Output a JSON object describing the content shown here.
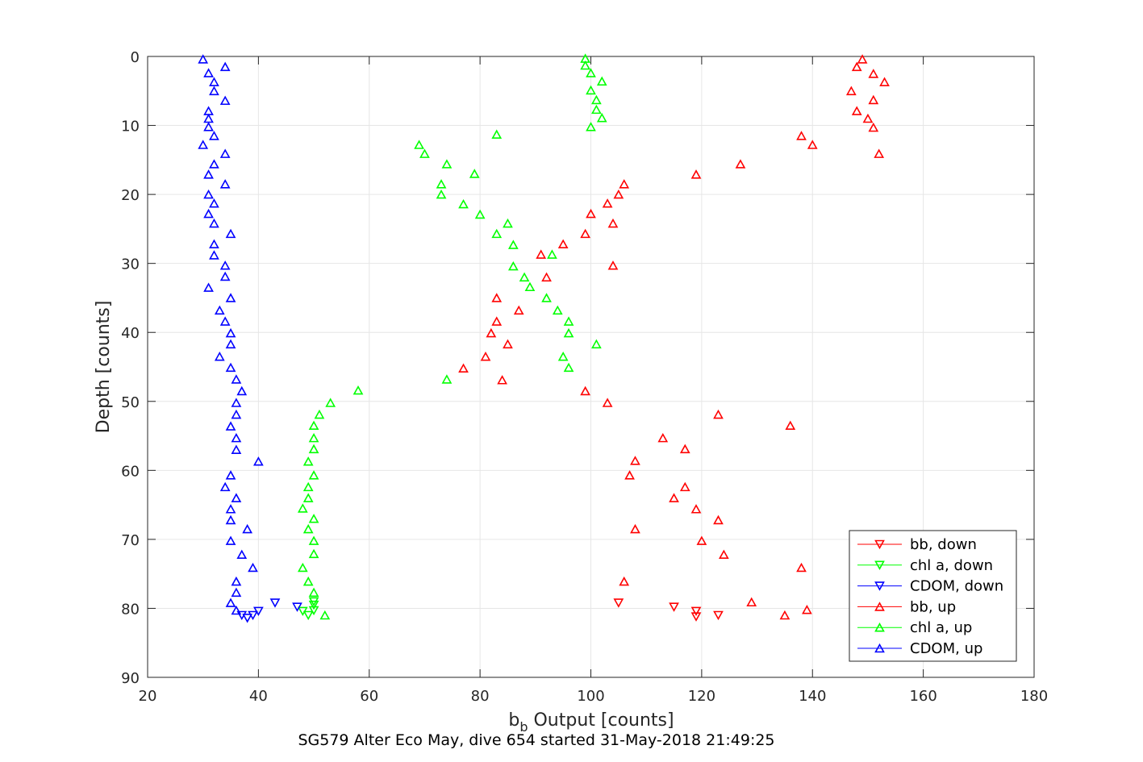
{
  "chart_data": {
    "type": "scatter",
    "title": "",
    "footer": "SG579 Alter Eco May, dive 654 started 31-May-2018 21:49:25",
    "xlabel_main": "b",
    "xlabel_sub": "b",
    "xlabel_rest": " Output [counts]",
    "ylabel": "Depth [counts]",
    "xlim": [
      20,
      180
    ],
    "ylim": [
      0,
      90
    ],
    "y_reversed": true,
    "grid": true,
    "legend_position": "bottom-right",
    "x_ticks": [
      20,
      40,
      60,
      80,
      100,
      120,
      140,
      160,
      180
    ],
    "y_ticks": [
      0,
      10,
      20,
      30,
      40,
      50,
      60,
      70,
      80,
      90
    ],
    "series": [
      {
        "name": "bb, down",
        "color": "#ff0000",
        "marker": "triangle-down",
        "points": [
          [
            105,
            79.2
          ],
          [
            115,
            79.8
          ],
          [
            119,
            80.4
          ],
          [
            119,
            81.2
          ],
          [
            123,
            81.0
          ]
        ]
      },
      {
        "name": "chl a, down",
        "color": "#00ff00",
        "marker": "triangle-down",
        "points": [
          [
            50,
            79.0
          ],
          [
            50,
            79.5
          ],
          [
            50,
            80.3
          ],
          [
            48,
            80.4
          ],
          [
            49,
            81.0
          ]
        ]
      },
      {
        "name": "CDOM, down",
        "color": "#0000ff",
        "marker": "triangle-down",
        "points": [
          [
            43,
            79.2
          ],
          [
            47,
            79.8
          ],
          [
            40,
            80.4
          ],
          [
            39,
            81.0
          ],
          [
            38,
            81.4
          ],
          [
            37,
            81.0
          ]
        ]
      },
      {
        "name": "bb, up",
        "color": "#ff0000",
        "marker": "triangle-up",
        "points": [
          [
            149,
            0.4
          ],
          [
            148,
            1.5
          ],
          [
            151,
            2.5
          ],
          [
            153,
            3.7
          ],
          [
            147,
            5.0
          ],
          [
            151,
            6.3
          ],
          [
            148,
            7.9
          ],
          [
            150,
            9.0
          ],
          [
            151,
            10.3
          ],
          [
            138,
            11.5
          ],
          [
            140,
            12.8
          ],
          [
            152,
            14.1
          ],
          [
            127,
            15.6
          ],
          [
            119,
            17.1
          ],
          [
            106,
            18.5
          ],
          [
            105,
            20.0
          ],
          [
            103,
            21.3
          ],
          [
            100,
            22.8
          ],
          [
            104,
            24.2
          ],
          [
            99,
            25.7
          ],
          [
            95,
            27.2
          ],
          [
            91,
            28.7
          ],
          [
            104,
            30.3
          ],
          [
            92,
            32.0
          ],
          [
            83,
            35.0
          ],
          [
            87,
            36.8
          ],
          [
            83,
            38.4
          ],
          [
            82,
            40.1
          ],
          [
            85,
            41.7
          ],
          [
            81,
            43.5
          ],
          [
            77,
            45.2
          ],
          [
            84,
            46.9
          ],
          [
            99,
            48.5
          ],
          [
            103,
            50.2
          ],
          [
            123,
            51.9
          ],
          [
            136,
            53.5
          ],
          [
            113,
            55.3
          ],
          [
            117,
            56.9
          ],
          [
            108,
            58.6
          ],
          [
            107,
            60.7
          ],
          [
            117,
            62.4
          ],
          [
            115,
            64.0
          ],
          [
            119,
            65.6
          ],
          [
            123,
            67.2
          ],
          [
            108,
            68.5
          ],
          [
            120,
            70.2
          ],
          [
            124,
            72.2
          ],
          [
            138,
            74.1
          ],
          [
            106,
            76.1
          ],
          [
            129,
            79.1
          ],
          [
            139,
            80.2
          ],
          [
            135,
            81.0
          ]
        ]
      },
      {
        "name": "chl a, up",
        "color": "#00ff00",
        "marker": "triangle-up",
        "points": [
          [
            99,
            0.3
          ],
          [
            99,
            1.3
          ],
          [
            100,
            2.4
          ],
          [
            102,
            3.6
          ],
          [
            100,
            4.9
          ],
          [
            101,
            6.3
          ],
          [
            101,
            7.7
          ],
          [
            102,
            8.9
          ],
          [
            100,
            10.2
          ],
          [
            83,
            11.3
          ],
          [
            69,
            12.8
          ],
          [
            70,
            14.1
          ],
          [
            74,
            15.6
          ],
          [
            79,
            17.0
          ],
          [
            73,
            18.5
          ],
          [
            73,
            20.0
          ],
          [
            77,
            21.4
          ],
          [
            80,
            22.9
          ],
          [
            85,
            24.2
          ],
          [
            83,
            25.7
          ],
          [
            86,
            27.3
          ],
          [
            93,
            28.7
          ],
          [
            86,
            30.4
          ],
          [
            88,
            32.0
          ],
          [
            89,
            33.4
          ],
          [
            92,
            35.0
          ],
          [
            94,
            36.8
          ],
          [
            96,
            38.4
          ],
          [
            96,
            40.1
          ],
          [
            101,
            41.7
          ],
          [
            95,
            43.5
          ],
          [
            96,
            45.1
          ],
          [
            74,
            46.8
          ],
          [
            58,
            48.4
          ],
          [
            53,
            50.2
          ],
          [
            51,
            51.9
          ],
          [
            50,
            53.5
          ],
          [
            50,
            55.3
          ],
          [
            50,
            56.9
          ],
          [
            49,
            58.7
          ],
          [
            50,
            60.7
          ],
          [
            49,
            62.4
          ],
          [
            49,
            64.0
          ],
          [
            48,
            65.5
          ],
          [
            50,
            67.0
          ],
          [
            49,
            68.5
          ],
          [
            50,
            70.2
          ],
          [
            50,
            72.1
          ],
          [
            48,
            74.1
          ],
          [
            49,
            76.1
          ],
          [
            50,
            77.7
          ],
          [
            52,
            81.0
          ]
        ]
      },
      {
        "name": "CDOM, up",
        "color": "#0000ff",
        "marker": "triangle-up",
        "points": [
          [
            30,
            0.4
          ],
          [
            34,
            1.5
          ],
          [
            31,
            2.4
          ],
          [
            32,
            3.7
          ],
          [
            32,
            5.0
          ],
          [
            34,
            6.4
          ],
          [
            31,
            7.9
          ],
          [
            31,
            9.0
          ],
          [
            31,
            10.2
          ],
          [
            32,
            11.5
          ],
          [
            30,
            12.8
          ],
          [
            34,
            14.1
          ],
          [
            32,
            15.6
          ],
          [
            31,
            17.1
          ],
          [
            34,
            18.5
          ],
          [
            31,
            20.0
          ],
          [
            32,
            21.3
          ],
          [
            31,
            22.8
          ],
          [
            32,
            24.2
          ],
          [
            35,
            25.7
          ],
          [
            32,
            27.2
          ],
          [
            32,
            28.8
          ],
          [
            34,
            30.3
          ],
          [
            34,
            31.9
          ],
          [
            31,
            33.5
          ],
          [
            35,
            35.0
          ],
          [
            33,
            36.8
          ],
          [
            34,
            38.4
          ],
          [
            35,
            40.1
          ],
          [
            35,
            41.7
          ],
          [
            33,
            43.5
          ],
          [
            35,
            45.1
          ],
          [
            36,
            46.8
          ],
          [
            37,
            48.5
          ],
          [
            36,
            50.2
          ],
          [
            36,
            51.9
          ],
          [
            35,
            53.6
          ],
          [
            36,
            55.3
          ],
          [
            36,
            57.0
          ],
          [
            40,
            58.7
          ],
          [
            35,
            60.7
          ],
          [
            34,
            62.4
          ],
          [
            36,
            64.0
          ],
          [
            35,
            65.6
          ],
          [
            35,
            67.2
          ],
          [
            38,
            68.5
          ],
          [
            35,
            70.2
          ],
          [
            37,
            72.2
          ],
          [
            39,
            74.1
          ],
          [
            36,
            76.1
          ],
          [
            36,
            77.7
          ],
          [
            35,
            79.2
          ],
          [
            36,
            80.3
          ]
        ]
      }
    ]
  }
}
